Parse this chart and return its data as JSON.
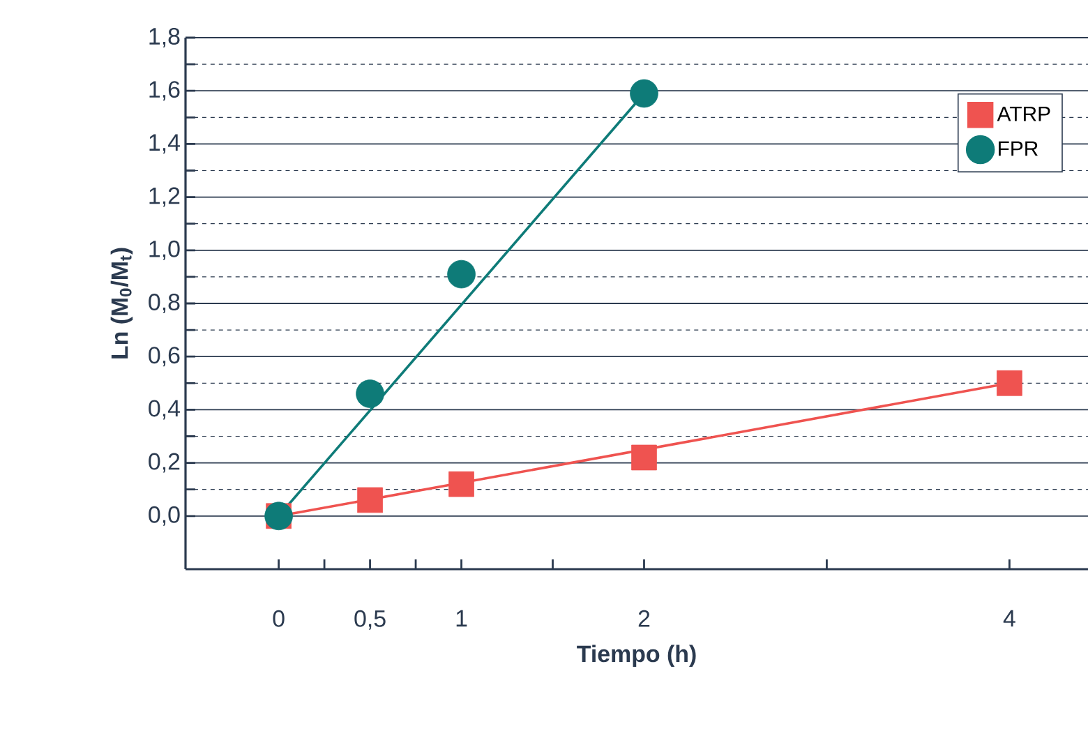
{
  "chart_data": {
    "type": "scatter",
    "xlabel": "Tiempo (h)",
    "ylabel": "Ln (M$_{0}$/M$_{t}$)",
    "xlim": [
      -0.51,
      4.43
    ],
    "ylim": [
      -0.2,
      1.8
    ],
    "xticks": [
      0,
      {
        "value": 0.25,
        "label": null
      },
      {
        "value": 0.5,
        "label": "0,5"
      },
      {
        "value": 0.75,
        "label": null
      },
      1,
      {
        "value": 1.5,
        "label": null
      },
      2,
      {
        "value": 3,
        "label": null
      },
      4
    ],
    "yticks": [
      {
        "value": 0,
        "label": "0,0"
      },
      {
        "value": 0.2,
        "label": "0,2"
      },
      {
        "value": 0.4,
        "label": "0,4"
      },
      {
        "value": 0.6,
        "label": "0,6"
      },
      {
        "value": 0.8,
        "label": "0,8"
      },
      {
        "value": 1.0,
        "label": "1,0"
      },
      {
        "value": 1.2,
        "label": "1,2"
      },
      {
        "value": 1.4,
        "label": "1,4"
      },
      {
        "value": 1.6,
        "label": "1,6"
      },
      {
        "value": 1.8,
        "label": "1,8"
      }
    ],
    "grid": "y",
    "legend": "top right",
    "series": [
      {
        "type": "line",
        "color": "#ef5350",
        "x": [
          0,
          4
        ],
        "values": [
          0,
          0.5
        ]
      },
      {
        "type": "line",
        "color": "#0e7b78",
        "x": [
          0,
          2
        ],
        "values": [
          0,
          1.59
        ]
      },
      {
        "name": "ATRP",
        "color": "#ef5350",
        "marker": "square",
        "x": [
          0,
          0.5,
          1,
          2,
          4
        ],
        "values": [
          0,
          0.06,
          0.12,
          0.22,
          0.5
        ]
      },
      {
        "name": "FPR",
        "color": "#0e7b78",
        "marker": "circle",
        "x": [
          0,
          0.5,
          1,
          2
        ],
        "values": [
          0,
          0.46,
          0.91,
          1.59
        ]
      }
    ]
  }
}
